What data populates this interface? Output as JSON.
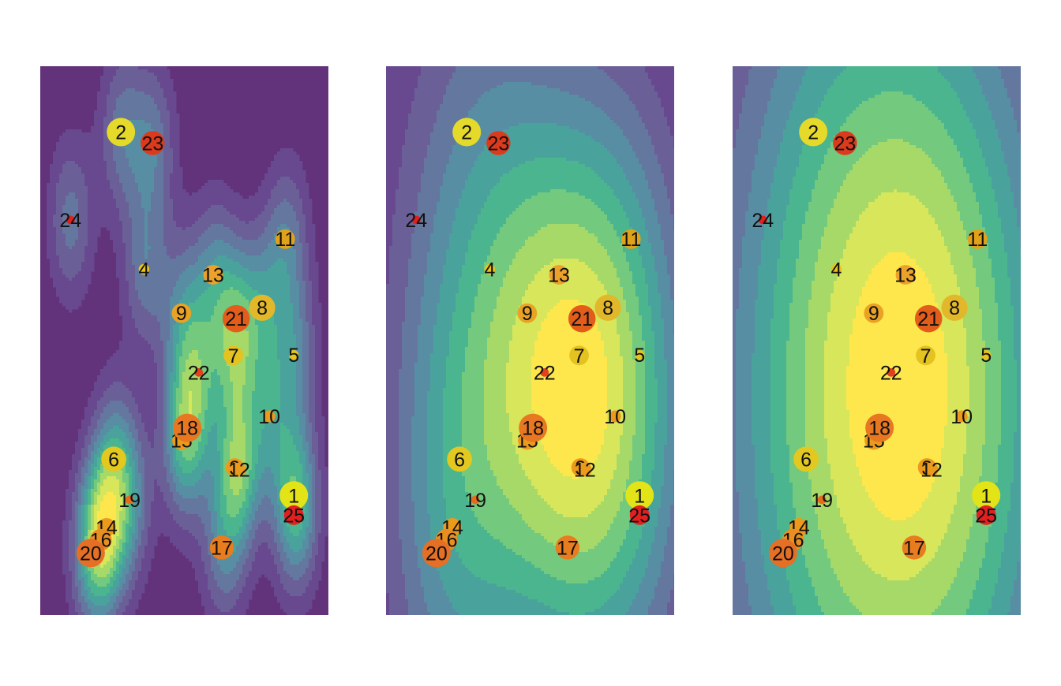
{
  "chart_data": [
    {
      "type": "scatter",
      "overlay": "kernel-density-contours",
      "bandwidth": "small",
      "title": "",
      "xlabel": "",
      "ylabel": "",
      "axes": "none",
      "grid": false,
      "legend": "none"
    },
    {
      "type": "scatter",
      "overlay": "kernel-density-contours",
      "bandwidth": "medium",
      "title": "",
      "xlabel": "",
      "ylabel": "",
      "axes": "none",
      "grid": false,
      "legend": "none"
    },
    {
      "type": "scatter",
      "overlay": "kernel-density-contours",
      "bandwidth": "large",
      "title": "",
      "xlabel": "",
      "ylabel": "",
      "axes": "none",
      "grid": false,
      "legend": "none"
    }
  ],
  "points": [
    {
      "label": "1",
      "x": 0.88,
      "y": 0.218,
      "size": 1.0,
      "color": "#e2e418"
    },
    {
      "label": "2",
      "x": 0.28,
      "y": 0.88,
      "size": 1.0,
      "color": "#e5d92a"
    },
    {
      "label": "3",
      "x": 0.675,
      "y": 0.269,
      "size": 0.55,
      "color": "#ec9a1c"
    },
    {
      "label": "4",
      "x": 0.36,
      "y": 0.63,
      "size": 0.2,
      "color": "#e8c31c"
    },
    {
      "label": "5",
      "x": 0.88,
      "y": 0.474,
      "size": 0.15,
      "color": "#e8c31c"
    },
    {
      "label": "6",
      "x": 0.255,
      "y": 0.284,
      "size": 0.85,
      "color": "#e3c820"
    },
    {
      "label": "7",
      "x": 0.67,
      "y": 0.473,
      "size": 0.6,
      "color": "#e4c21f"
    },
    {
      "label": "8",
      "x": 0.77,
      "y": 0.56,
      "size": 0.9,
      "color": "#e2b72a"
    },
    {
      "label": "9",
      "x": 0.49,
      "y": 0.55,
      "size": 0.6,
      "color": "#e9a223"
    },
    {
      "label": "10",
      "x": 0.795,
      "y": 0.362,
      "size": 0.25,
      "color": "#ec9a1c"
    },
    {
      "label": "11",
      "x": 0.85,
      "y": 0.685,
      "size": 0.6,
      "color": "#e0a21a"
    },
    {
      "label": "12",
      "x": 0.69,
      "y": 0.265,
      "size": 0.35,
      "color": "#ec9a1c"
    },
    {
      "label": "13",
      "x": 0.6,
      "y": 0.62,
      "size": 0.6,
      "color": "#eba12a"
    },
    {
      "label": "14",
      "x": 0.23,
      "y": 0.16,
      "size": 0.55,
      "color": "#ec9a1c"
    },
    {
      "label": "15",
      "x": 0.49,
      "y": 0.318,
      "size": 0.55,
      "color": "#ec9a1c"
    },
    {
      "label": "16",
      "x": 0.21,
      "y": 0.137,
      "size": 0.7,
      "color": "#e98f21"
    },
    {
      "label": "17",
      "x": 0.63,
      "y": 0.123,
      "size": 0.8,
      "color": "#e77d1f"
    },
    {
      "label": "18",
      "x": 0.51,
      "y": 0.341,
      "size": 1.0,
      "color": "#e87722"
    },
    {
      "label": "19",
      "x": 0.31,
      "y": 0.21,
      "size": 0.1,
      "color": "#e86a1c"
    },
    {
      "label": "20",
      "x": 0.175,
      "y": 0.113,
      "size": 1.0,
      "color": "#e66f26"
    },
    {
      "label": "21",
      "x": 0.68,
      "y": 0.54,
      "size": 0.95,
      "color": "#e35d1a"
    },
    {
      "label": "22",
      "x": 0.55,
      "y": 0.442,
      "size": 0.1,
      "color": "#e5401c"
    },
    {
      "label": "23",
      "x": 0.39,
      "y": 0.86,
      "size": 0.8,
      "color": "#dd3a1d"
    },
    {
      "label": "24",
      "x": 0.105,
      "y": 0.72,
      "size": 0.1,
      "color": "#dc2121"
    },
    {
      "label": "25",
      "x": 0.88,
      "y": 0.182,
      "size": 0.6,
      "color": "#e41f20"
    }
  ],
  "density_palette": [
    "#62327a",
    "#68488f",
    "#6a5f97",
    "#64779f",
    "#588ea3",
    "#4aa29d",
    "#4ab58e",
    "#73c97e",
    "#a7d968",
    "#d7e65b",
    "#fde74c"
  ]
}
